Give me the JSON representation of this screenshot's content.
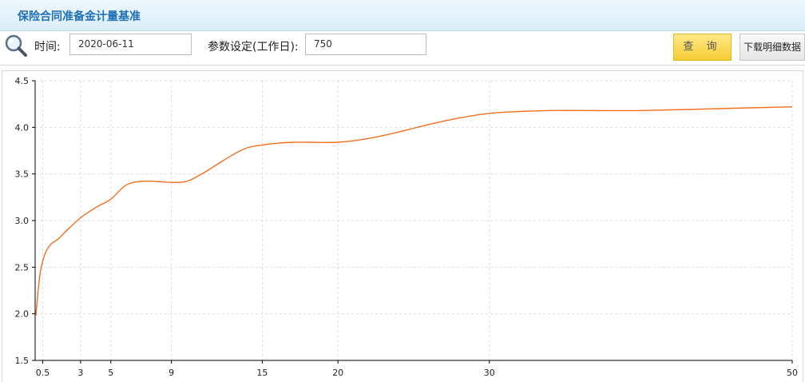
{
  "header": {
    "title": "保险合同准备金计量基准"
  },
  "toolbar": {
    "search_icon": "magnifier-icon",
    "date_label": "时间:",
    "date_value": "2020-06-11",
    "param_label": "参数设定(工作日):",
    "param_value": "750",
    "query_label": "查 询",
    "download_label": "下载明细数据"
  },
  "chart_data": {
    "type": "line",
    "title": "",
    "xlabel": "",
    "ylabel": "",
    "x_ticks": [
      "0.5",
      "3",
      "5",
      "9",
      "15",
      "20",
      "30",
      "50"
    ],
    "y_ticks": [
      "1.5",
      "2.0",
      "2.5",
      "3.0",
      "3.5",
      "4.0",
      "4.5"
    ],
    "xlim": [
      0,
      50
    ],
    "ylim": [
      1.5,
      4.5
    ],
    "grid": true,
    "series": [
      {
        "color": "#f07020",
        "x": [
          0.05,
          0.3,
          0.6,
          1,
          1.5,
          2,
          3,
          4,
          5,
          6,
          7,
          8,
          9,
          10,
          11,
          12,
          13,
          14,
          15,
          16,
          17,
          18,
          20,
          22,
          24,
          26,
          28,
          30,
          32,
          34,
          36,
          40,
          45,
          50
        ],
        "y": [
          1.98,
          2.4,
          2.62,
          2.74,
          2.8,
          2.88,
          3.03,
          3.14,
          3.23,
          3.38,
          3.42,
          3.42,
          3.41,
          3.42,
          3.5,
          3.6,
          3.7,
          3.78,
          3.81,
          3.83,
          3.84,
          3.84,
          3.84,
          3.88,
          3.95,
          4.03,
          4.1,
          4.15,
          4.17,
          4.18,
          4.18,
          4.18,
          4.2,
          4.22
        ]
      }
    ]
  }
}
